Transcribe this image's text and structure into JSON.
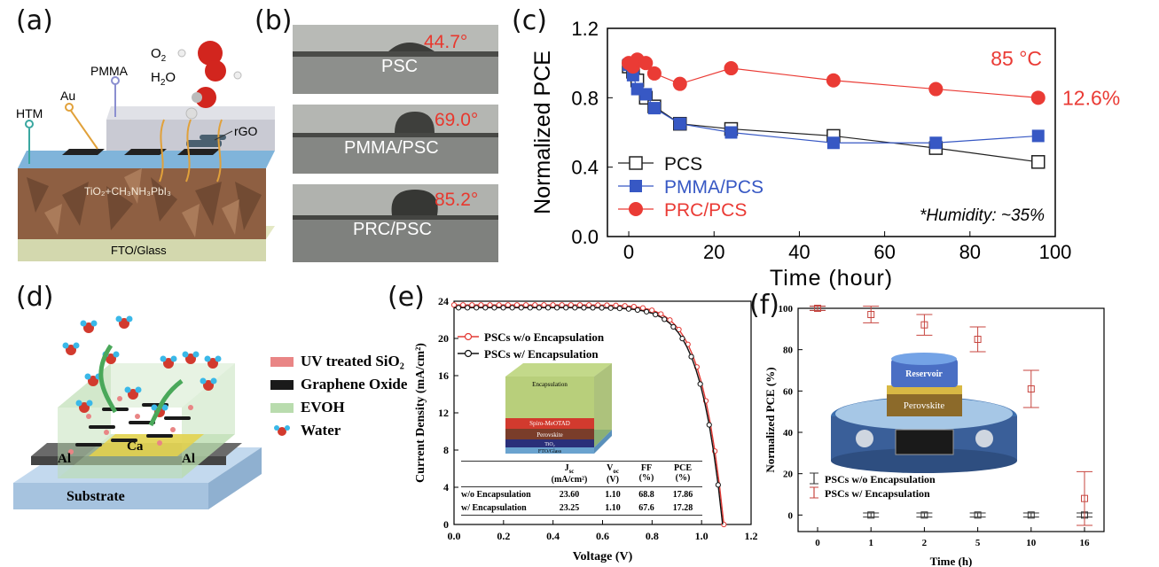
{
  "panels": {
    "a": "(a)",
    "b": "(b)",
    "c": "(c)",
    "d": "(d)",
    "e": "(e)",
    "f": "(f)"
  },
  "panel_a": {
    "labels": {
      "o2": "O",
      "o2_sub": "2",
      "h2o": "H",
      "h2o_sub": "2",
      "h2o_o": "O",
      "pmma": "PMMA",
      "au": "Au",
      "htm": "HTM",
      "rgo": "rGO",
      "tio2": "TiO₂+CH₃NH₃PbI₃",
      "fto": "FTO/Glass"
    },
    "colors": {
      "glass": "#d7dcb4",
      "pmma": "#c8c8d0",
      "htm_line": "#3aa7a0",
      "perov": "#8a5a3a"
    }
  },
  "panel_b": {
    "images": [
      {
        "label": "PSC",
        "angle": "44.7°"
      },
      {
        "label": "PMMA/PSC",
        "angle": "69.0°"
      },
      {
        "label": "PRC/PSC",
        "angle": "85.2°"
      }
    ],
    "angle_color": "#e8382e"
  },
  "panel_d": {
    "legend": [
      {
        "label": "UV treated SiO₂",
        "color": "#e98585"
      },
      {
        "label": "Graphene Oxide",
        "color": "#1a1a1a"
      },
      {
        "label": "EVOH",
        "color": "#b9dcae"
      },
      {
        "label": "Water",
        "color": "#d23a2e"
      }
    ],
    "labels": {
      "ca": "Ca",
      "al_left": "Al",
      "al_right": "Al",
      "substrate": "Substrate"
    }
  },
  "panel_e_inset": {
    "layers": [
      "Encapsulation",
      "Spiro-MeOTAD",
      "Perovskite",
      "TiO₂",
      "FTO/Glass"
    ],
    "table": {
      "headers": [
        "",
        "Jsc\n(mA/cm²)",
        "Voc\n(V)",
        "FF\n(%)",
        "PCE\n(%)"
      ],
      "header_main": [
        "",
        "J",
        "V",
        "FF",
        "PCE"
      ],
      "header_sub": [
        "",
        "sc",
        "oc",
        "",
        ""
      ],
      "header_units": [
        "",
        "(mA/cm²)",
        "(V)",
        "(%)",
        "(%)"
      ],
      "rows": [
        [
          "w/o Encapsulation",
          "23.60",
          "1.10",
          "68.8",
          "17.86"
        ],
        [
          "w/ Encapsulation",
          "23.25",
          "1.10",
          "67.6",
          "17.28"
        ]
      ]
    }
  },
  "panel_f_inset": {
    "reservoir": "Reservoir",
    "perovskite": "Perovskite"
  },
  "chart_data": [
    {
      "id": "c",
      "type": "line",
      "xlabel": "Time (hour)",
      "ylabel": "Normalized PCE",
      "xlim": [
        -5,
        100
      ],
      "ylim": [
        0.0,
        1.2
      ],
      "xticks": [
        0,
        20,
        40,
        60,
        80,
        100
      ],
      "yticks": [
        "0.0",
        "0.4",
        "0.8",
        "1.2"
      ],
      "series": [
        {
          "name": "PCS",
          "color": "#222222",
          "marker": "open-square",
          "x": [
            0,
            1,
            2,
            4,
            6,
            12,
            24,
            48,
            72,
            96
          ],
          "y": [
            0.98,
            0.95,
            0.9,
            0.8,
            0.75,
            0.65,
            0.62,
            0.58,
            0.51,
            0.43
          ]
        },
        {
          "name": "PMMA/PCS",
          "color": "#3758c4",
          "marker": "filled-square",
          "x": [
            0,
            1,
            2,
            4,
            6,
            12,
            24,
            48,
            72,
            96
          ],
          "y": [
            0.99,
            0.93,
            0.85,
            0.82,
            0.74,
            0.65,
            0.6,
            0.54,
            0.54,
            0.58
          ]
        },
        {
          "name": "PRC/PCS",
          "color": "#ea3b35",
          "marker": "filled-circle",
          "x": [
            0,
            1,
            2,
            4,
            6,
            12,
            24,
            48,
            72,
            96
          ],
          "y": [
            1.0,
            0.98,
            1.02,
            1.0,
            0.94,
            0.88,
            0.97,
            0.9,
            0.85,
            0.8
          ]
        }
      ],
      "annotations": {
        "temp": "85 °C",
        "final": "12.6%",
        "humidity": "*Humidity: ~35%"
      }
    },
    {
      "id": "e",
      "type": "line",
      "xlabel": "Voltage (V)",
      "ylabel": "Current Density (mA/cm²)",
      "xlim": [
        0.0,
        1.2
      ],
      "ylim": [
        0,
        24
      ],
      "xticks": [
        "0.0",
        "0.2",
        "0.4",
        "0.6",
        "0.8",
        "1.0",
        "1.2"
      ],
      "yticks": [
        "0",
        "4",
        "8",
        "12",
        "16",
        "20",
        "24"
      ],
      "series": [
        {
          "name": "PSCs w/o Encapsulation",
          "color": "#e33a35",
          "jsc": 23.6,
          "voc": 1.09
        },
        {
          "name": "PSCs w/ Encapsulation",
          "color": "#111111",
          "jsc": 23.3,
          "voc": 1.085
        }
      ]
    },
    {
      "id": "f",
      "type": "scatter",
      "xlabel": "Time (h)",
      "ylabel": "Normalized PCE (%)",
      "categories": [
        "0",
        "1",
        "2",
        "5",
        "10",
        "16"
      ],
      "ylim": [
        0,
        100
      ],
      "yticks": [
        "0",
        "20",
        "40",
        "60",
        "80",
        "100"
      ],
      "series": [
        {
          "name": "PSCs w/o Encapsulation",
          "color": "#333333",
          "values": [
            100,
            0,
            0,
            0,
            0,
            0
          ],
          "errors": [
            1,
            1,
            1,
            1,
            1,
            1
          ]
        },
        {
          "name": "PSCs w/ Encapsulation",
          "color": "#c7453f",
          "values": [
            100,
            97,
            92,
            85,
            61,
            8
          ],
          "errors": [
            1,
            4,
            5,
            6,
            9,
            13
          ]
        }
      ]
    }
  ]
}
